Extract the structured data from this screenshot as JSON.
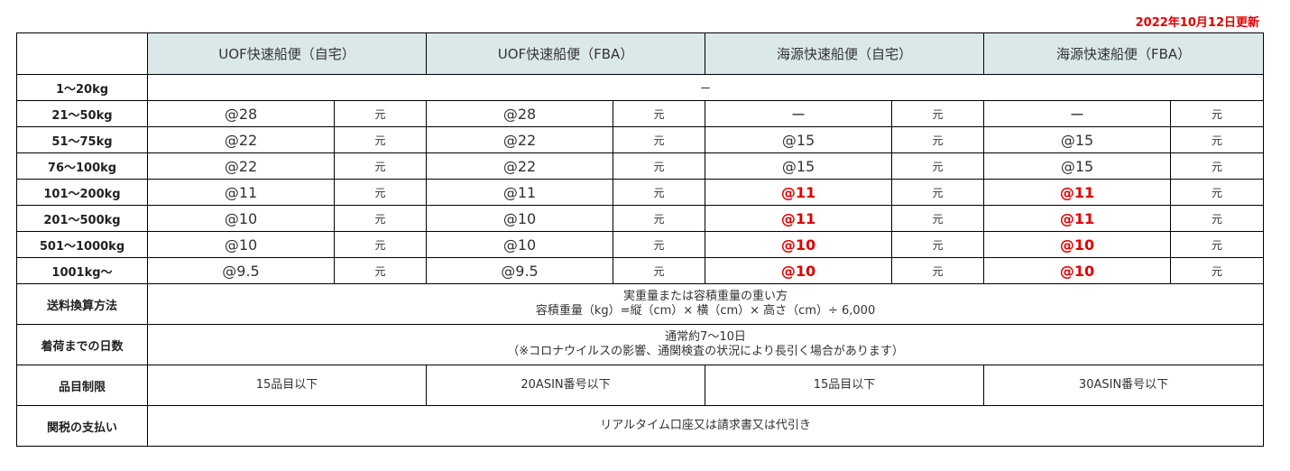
{
  "updated": "2022年10月12日更新",
  "columns": [
    "UOF快速船便（自宅）",
    "UOF快速船便（FBA）",
    "海源快速船便（自宅）",
    "海源快速船便（FBA）"
  ],
  "first_row": {
    "label": "1～20kg",
    "value": "ー"
  },
  "unit": "元",
  "rates": [
    {
      "label": "21～50kg",
      "prices": [
        "@28",
        "@28",
        "ー",
        "ー"
      ],
      "red": [
        false,
        false,
        false,
        false
      ]
    },
    {
      "label": "51～75kg",
      "prices": [
        "@22",
        "@22",
        "@15",
        "@15"
      ],
      "red": [
        false,
        false,
        false,
        false
      ]
    },
    {
      "label": "76～100kg",
      "prices": [
        "@22",
        "@22",
        "@15",
        "@15"
      ],
      "red": [
        false,
        false,
        false,
        false
      ]
    },
    {
      "label": "101～200kg",
      "prices": [
        "@11",
        "@11",
        "@11",
        "@11"
      ],
      "red": [
        false,
        false,
        true,
        true
      ]
    },
    {
      "label": "201～500kg",
      "prices": [
        "@10",
        "@10",
        "@11",
        "@11"
      ],
      "red": [
        false,
        false,
        true,
        true
      ]
    },
    {
      "label": "501～1000kg",
      "prices": [
        "@10",
        "@10",
        "@10",
        "@10"
      ],
      "red": [
        false,
        false,
        true,
        true
      ]
    },
    {
      "label": "1001kg～",
      "prices": [
        "@9.5",
        "@9.5",
        "@10",
        "@10"
      ],
      "red": [
        false,
        false,
        true,
        true
      ]
    }
  ],
  "shipping_calc": {
    "label": "送料換算方法",
    "line1": "実重量または容積重量の重い方",
    "line2": "容積重量（kg）=縦（cm）× 横（cm）× 高さ（cm）÷ 6,000"
  },
  "delivery_days": {
    "label": "着荷までの日数",
    "line1": "通常約7～10日",
    "line2": "（※コロナウイルスの影響、通関検査の状況により長引く場合があります）"
  },
  "item_limit": {
    "label": "品目制限",
    "values": [
      "15品目以下",
      "20ASIN番号以下",
      "15品目以下",
      "30ASIN番号以下"
    ]
  },
  "payment": {
    "label": "関税の支払い",
    "value": "リアルタイム口座又は請求書又は代引き"
  }
}
